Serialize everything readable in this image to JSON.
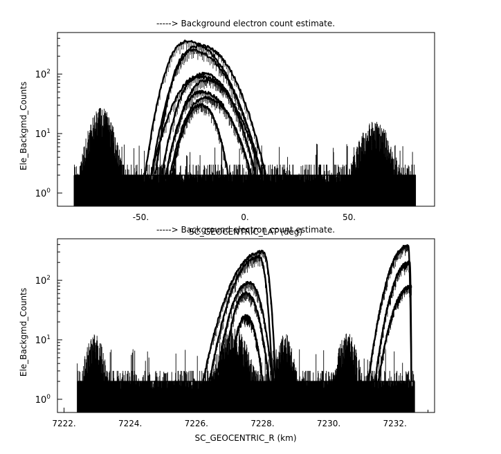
{
  "chart_data": [
    {
      "type": "line",
      "title": "-----> Background electron count estimate.",
      "xlabel": "SC_GEOCENTRIC_LAT (deg)",
      "ylabel": "Ele_Backgmd_Counts",
      "xlim": [
        -90,
        91
      ],
      "ylim": [
        0.6,
        500
      ],
      "yscale": "log",
      "xticks": [
        {
          "value": -50,
          "label": "-50."
        },
        {
          "value": 0,
          "label": "0."
        },
        {
          "value": 50,
          "label": "50."
        }
      ],
      "yticks": [
        {
          "value": 1,
          "base": "10",
          "exp": "0"
        },
        {
          "value": 10,
          "base": "10",
          "exp": "1"
        },
        {
          "value": 100,
          "base": "10",
          "exp": "2"
        }
      ],
      "grid": false,
      "noise_floor": [
        -82,
        82
      ],
      "bumps": [
        {
          "x_range": [
            -82,
            -52
          ],
          "y_peak": 25
        },
        {
          "x_range": [
            47,
            82
          ],
          "y_peak": 15
        }
      ],
      "arcs": [
        {
          "x_range": [
            -48,
            8
          ],
          "peak_x": -28,
          "y_peak": 350
        },
        {
          "x_range": [
            -45,
            10
          ],
          "peak_x": -22,
          "y_peak": 300
        },
        {
          "x_range": [
            -43,
            8
          ],
          "peak_x": -26,
          "y_peak": 250
        },
        {
          "x_range": [
            -45,
            5
          ],
          "peak_x": -20,
          "y_peak": 100
        },
        {
          "x_range": [
            -40,
            8
          ],
          "peak_x": -22,
          "y_peak": 90
        },
        {
          "x_range": [
            -38,
            5
          ],
          "peak_x": -18,
          "y_peak": 80
        },
        {
          "x_range": [
            -38,
            3
          ],
          "peak_x": -21,
          "y_peak": 50
        },
        {
          "x_range": [
            -36,
            3
          ],
          "peak_x": -19,
          "y_peak": 40
        },
        {
          "x_range": [
            -35,
            -8
          ],
          "peak_x": -21,
          "y_peak": 30
        }
      ]
    },
    {
      "type": "line",
      "title": "-----> Background electron count estimate.",
      "xlabel": "SC_GEOCENTRIC_R (km)",
      "ylabel": "Ele_Backgmd_Counts",
      "xlim": [
        7221.8,
        7233.2
      ],
      "ylim": [
        0.6,
        500
      ],
      "yscale": "log",
      "xticks": [
        {
          "value": 7222,
          "label": "7222."
        },
        {
          "value": 7224,
          "label": "7224."
        },
        {
          "value": 7226,
          "label": "7226."
        },
        {
          "value": 7228,
          "label": "7228."
        },
        {
          "value": 7230,
          "label": "7230."
        },
        {
          "value": 7232,
          "label": "7232."
        }
      ],
      "yticks": [
        {
          "value": 1,
          "base": "10",
          "exp": "0"
        },
        {
          "value": 10,
          "base": "10",
          "exp": "1"
        },
        {
          "value": 100,
          "base": "10",
          "exp": "2"
        }
      ],
      "grid": false,
      "noise_floor": [
        7222.4,
        7232.6
      ],
      "bumps": [
        {
          "x_range": [
            7222.4,
            7223.6
          ],
          "y_peak": 12
        },
        {
          "x_range": [
            7226.2,
            7228.3
          ],
          "y_peak": 15
        },
        {
          "x_range": [
            7228.2,
            7229.3
          ],
          "y_peak": 12
        },
        {
          "x_range": [
            7230.0,
            7231.3
          ],
          "y_peak": 12
        }
      ],
      "arcs": [
        {
          "x_range": [
            7226.2,
            7228.4
          ],
          "peak_x": 7228.0,
          "y_peak": 300
        },
        {
          "x_range": [
            7226.4,
            7228.3
          ],
          "peak_x": 7227.9,
          "y_peak": 250
        },
        {
          "x_range": [
            7226.6,
            7228.3
          ],
          "peak_x": 7227.6,
          "y_peak": 90
        },
        {
          "x_range": [
            7226.8,
            7228.2
          ],
          "peak_x": 7227.5,
          "y_peak": 60
        },
        {
          "x_range": [
            7227.0,
            7228.0
          ],
          "peak_x": 7227.5,
          "y_peak": 25
        },
        {
          "x_range": [
            7231.2,
            7232.5
          ],
          "peak_x": 7232.4,
          "y_peak": 380
        },
        {
          "x_range": [
            7231.4,
            7232.5
          ],
          "peak_x": 7232.45,
          "y_peak": 200
        },
        {
          "x_range": [
            7231.5,
            7232.5
          ],
          "peak_x": 7232.5,
          "y_peak": 80
        }
      ]
    }
  ]
}
